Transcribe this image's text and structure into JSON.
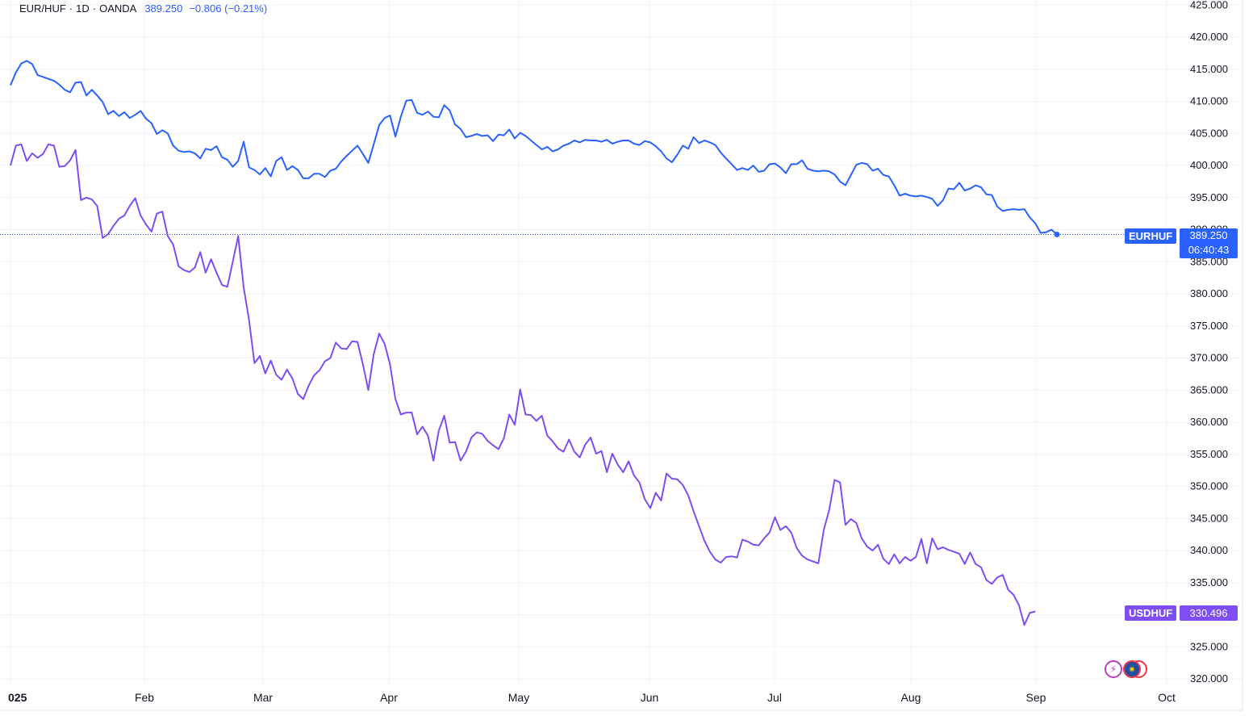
{
  "legend": {
    "symbol": "EUR/HUF",
    "interval": "1D",
    "source": "OANDA",
    "price": "389.250",
    "change": "−0.806 (−0.21%)",
    "separator": "·"
  },
  "tags": {
    "eurhuf_label": "EURHUF",
    "eurhuf_price": "389.250",
    "eurhuf_countdown": "06:40:43",
    "usdhuf_label": "USDHUF",
    "usdhuf_price": "330.496"
  },
  "colors": {
    "eurhuf": "#2962ff",
    "usdhuf": "#7e4ef3",
    "grid": "#f0f3fa",
    "text": "#131722"
  },
  "chart_data": {
    "type": "line",
    "ylim": [
      320,
      425
    ],
    "y_ticks": [
      "425.000",
      "420.000",
      "415.000",
      "410.000",
      "405.000",
      "400.000",
      "395.000",
      "390.000",
      "385.000",
      "380.000",
      "375.000",
      "370.000",
      "365.000",
      "360.000",
      "355.000",
      "350.000",
      "345.000",
      "340.000",
      "335.000",
      "330.000",
      "325.000",
      "320.000"
    ],
    "x_ticks": [
      "025",
      "Feb",
      "Mar",
      "Apr",
      "May",
      "Jun",
      "Jul",
      "Aug",
      "Sep",
      "Oct"
    ],
    "grid": true,
    "series": [
      {
        "name": "EURHUF",
        "values": [
          412.5,
          414.5,
          415.9,
          416.3,
          415.8,
          414.1,
          413.8,
          413.5,
          413.2,
          412.6,
          411.8,
          411.4,
          412.9,
          413.0,
          410.9,
          411.8,
          410.9,
          409.9,
          408.0,
          408.5,
          407.7,
          408.3,
          407.4,
          407.9,
          408.5,
          407.3,
          406.6,
          404.9,
          405.5,
          405.0,
          403.1,
          402.3,
          402.1,
          402.2,
          401.9,
          401.1,
          402.6,
          402.4,
          403.0,
          401.3,
          400.9,
          399.8,
          400.7,
          403.7,
          399.7,
          399.3,
          398.6,
          399.6,
          398.3,
          400.7,
          401.3,
          399.3,
          399.9,
          399.3,
          398.0,
          398.0,
          398.7,
          398.7,
          398.2,
          399.2,
          399.5,
          400.6,
          401.5,
          402.3,
          403.1,
          401.8,
          400.4,
          403.3,
          406.3,
          407.4,
          407.8,
          404.5,
          407.6,
          410.1,
          410.2,
          408.2,
          407.9,
          408.4,
          407.6,
          407.5,
          409.4,
          408.6,
          406.4,
          405.7,
          404.4,
          404.6,
          404.9,
          404.6,
          404.7,
          403.8,
          404.8,
          404.7,
          405.6,
          404.2,
          405.1,
          404.6,
          403.9,
          403.2,
          402.5,
          402.9,
          402.2,
          402.5,
          403.1,
          403.4,
          403.9,
          403.6,
          404.0,
          403.9,
          403.9,
          403.7,
          404.0,
          403.4,
          403.7,
          403.9,
          403.9,
          403.4,
          403.2,
          403.8,
          403.6,
          403.0,
          402.2,
          401.1,
          400.5,
          401.7,
          403.1,
          402.6,
          404.4,
          403.5,
          403.9,
          403.6,
          403.2,
          402.0,
          401.1,
          400.2,
          399.3,
          399.6,
          399.3,
          400.0,
          399.0,
          399.2,
          400.2,
          400.3,
          399.7,
          398.8,
          400.2,
          400.2,
          400.8,
          399.5,
          399.2,
          399.1,
          399.2,
          399.1,
          398.6,
          397.5,
          396.9,
          398.5,
          400.1,
          400.4,
          400.2,
          399.2,
          399.5,
          398.5,
          398.3,
          396.9,
          395.3,
          395.6,
          395.3,
          395.2,
          395.3,
          395.1,
          394.8,
          393.7,
          394.6,
          396.4,
          396.3,
          397.3,
          396.1,
          396.4,
          396.9,
          396.6,
          395.5,
          395.4,
          393.6,
          392.9,
          393.1,
          393.2,
          393.1,
          393.2,
          391.9,
          391.0,
          389.5,
          389.6,
          390.0,
          389.25
        ]
      },
      {
        "name": "USDHUF",
        "values": [
          400.0,
          403.1,
          403.3,
          400.7,
          401.9,
          401.2,
          401.8,
          403.3,
          403.1,
          399.8,
          399.9,
          400.8,
          402.4,
          394.6,
          395.0,
          394.7,
          393.7,
          388.7,
          389.3,
          390.6,
          391.7,
          392.2,
          393.7,
          394.9,
          392.2,
          390.8,
          389.7,
          392.5,
          392.8,
          389.0,
          387.7,
          384.3,
          383.7,
          383.4,
          384.1,
          386.5,
          383.3,
          385.4,
          383.3,
          381.4,
          381.1,
          385.0,
          389.0,
          381.0,
          375.9,
          369.2,
          370.3,
          367.6,
          369.6,
          367.4,
          366.6,
          368.2,
          366.8,
          364.4,
          363.6,
          365.7,
          367.3,
          368.1,
          369.5,
          370.0,
          372.4,
          371.5,
          371.4,
          372.6,
          372.5,
          369.0,
          365.0,
          370.6,
          373.8,
          372.2,
          369.0,
          363.6,
          361.2,
          361.5,
          361.5,
          358.1,
          359.3,
          357.9,
          354.0,
          358.7,
          361.0,
          356.8,
          356.9,
          354.0,
          355.4,
          357.6,
          358.4,
          358.2,
          357.1,
          356.4,
          355.8,
          357.5,
          361.2,
          359.6,
          365.1,
          361.2,
          361.1,
          360.2,
          361.0,
          357.9,
          357.0,
          355.9,
          355.4,
          357.3,
          355.4,
          354.5,
          356.5,
          357.6,
          355.1,
          355.5,
          352.2,
          355.1,
          353.4,
          352.2,
          353.9,
          351.7,
          350.6,
          348.0,
          346.6,
          349.0,
          347.8,
          352.0,
          351.2,
          351.1,
          350.2,
          348.6,
          346.1,
          343.8,
          341.5,
          339.8,
          338.6,
          338.1,
          339.0,
          339.1,
          338.9,
          341.7,
          341.4,
          340.9,
          340.8,
          341.9,
          342.8,
          345.2,
          343.2,
          343.8,
          342.8,
          340.4,
          339.2,
          338.6,
          338.3,
          338.0,
          343.2,
          346.3,
          351.0,
          350.6,
          344.0,
          344.9,
          344.3,
          341.9,
          340.6,
          340.0,
          340.9,
          338.7,
          337.9,
          339.4,
          338.0,
          339.0,
          338.4,
          339.0,
          341.8,
          338.0,
          341.9,
          340.2,
          340.5,
          340.1,
          339.8,
          339.5,
          337.9,
          339.7,
          337.9,
          337.4,
          335.4,
          334.8,
          335.8,
          336.2,
          333.9,
          333.1,
          331.5,
          328.4,
          330.3,
          330.496
        ]
      }
    ]
  }
}
